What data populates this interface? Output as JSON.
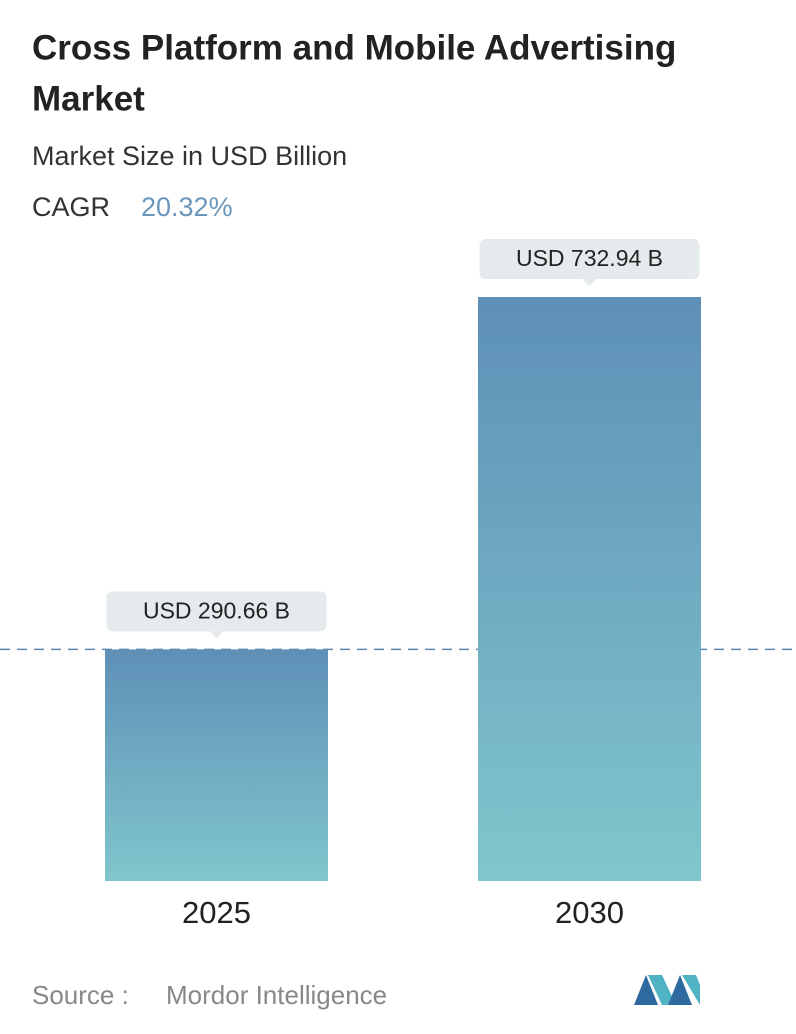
{
  "chart_data": {
    "type": "bar",
    "title_lines": [
      "Cross Platform and Mobile Advertising",
      "Market"
    ],
    "subtitle": "Market Size in USD Billion",
    "cagr_label": "CAGR",
    "cagr": "20.32%",
    "categories": [
      "2025",
      "2030"
    ],
    "values": [
      290.66,
      732.94
    ],
    "value_labels": [
      "USD 290.66 B",
      "USD 732.94 B"
    ],
    "colors": [
      "#5e8fb7",
      "#80c6cc"
    ],
    "source_label": "Source :",
    "source": "Mordor Intelligence"
  }
}
